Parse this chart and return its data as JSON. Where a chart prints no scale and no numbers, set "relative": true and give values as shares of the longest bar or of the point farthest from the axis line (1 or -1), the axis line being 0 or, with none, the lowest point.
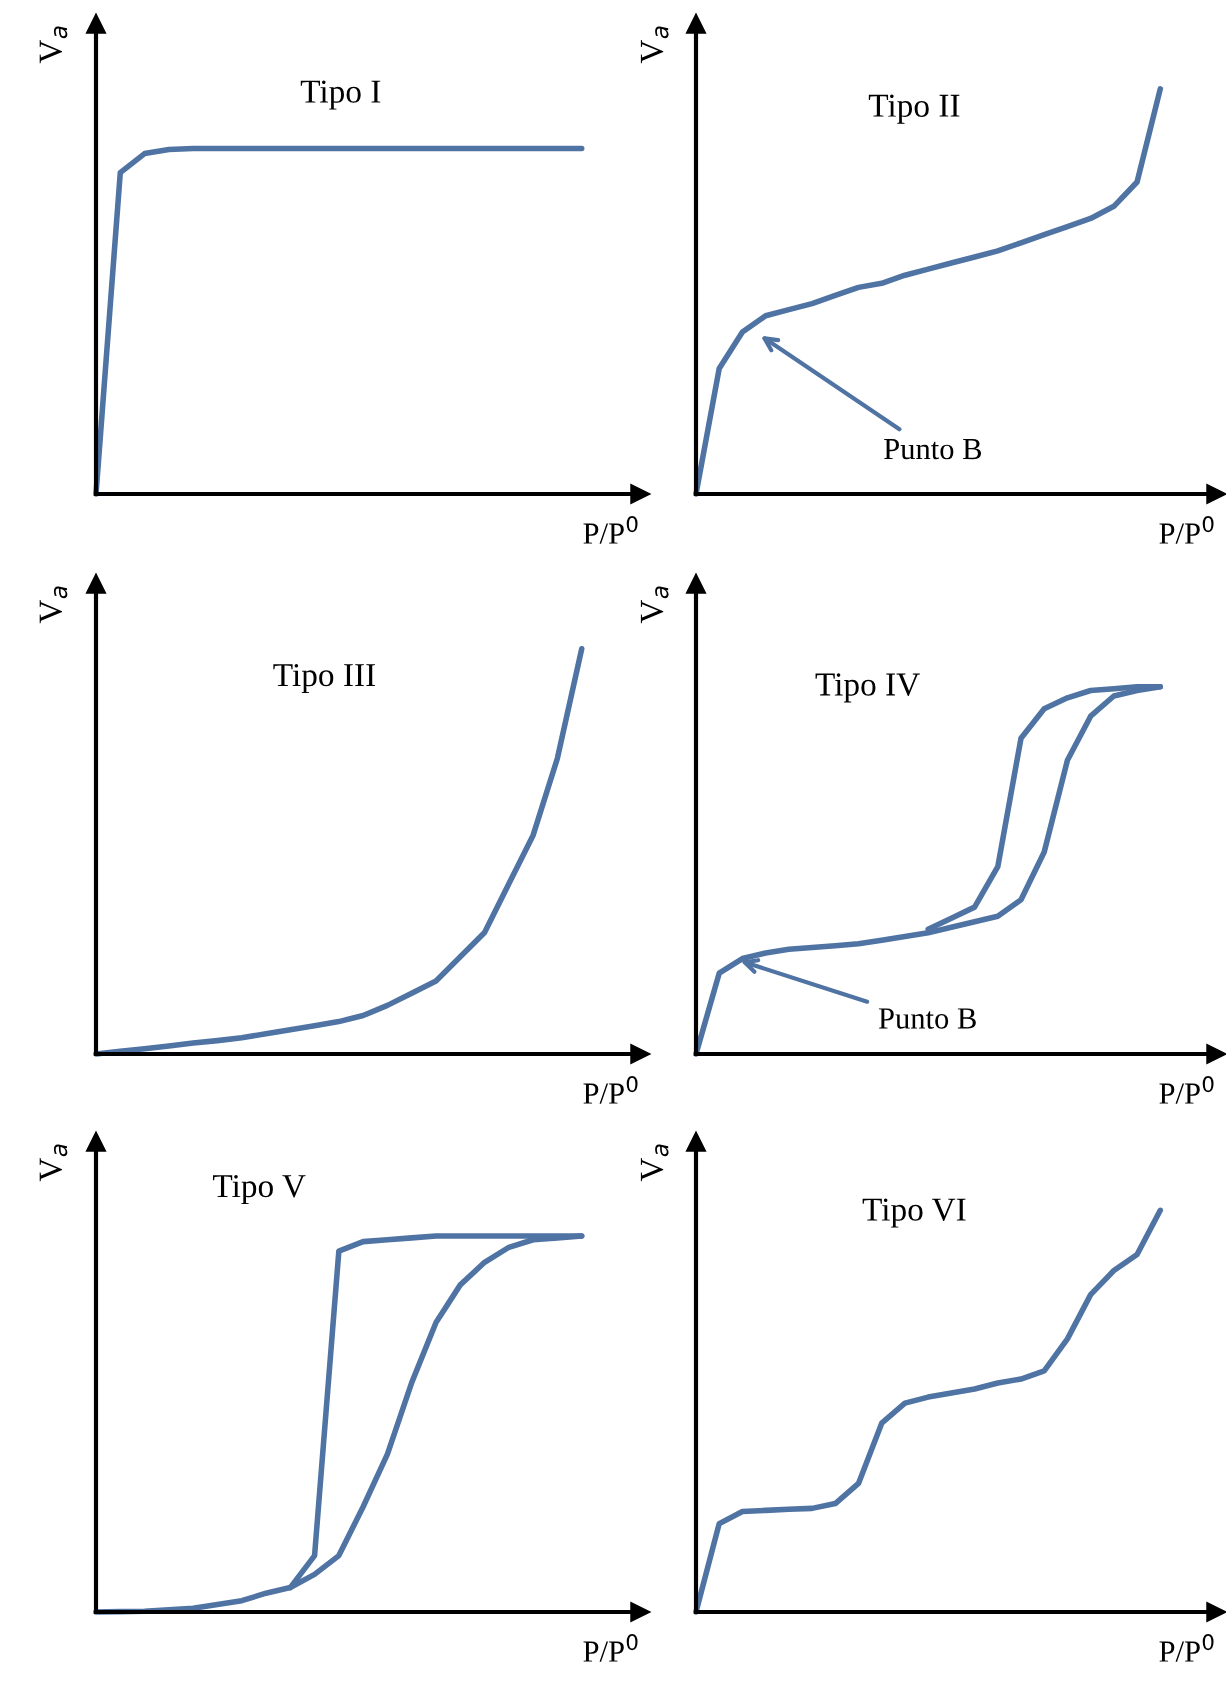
{
  "chart_data": [
    {
      "type": "line",
      "title": "Tipo I",
      "xlabel": "P/P$^{0}$",
      "ylabel": "V$_{a}$",
      "relative": true,
      "tick_labels": false,
      "categories": [
        null,
        null,
        null,
        null,
        null,
        null,
        null,
        null,
        null,
        null,
        null,
        null,
        null,
        null,
        null,
        null,
        null,
        null,
        null,
        null,
        null
      ],
      "series": [
        {
          "color": "#4f73a3",
          "values": [
            0,
            0.93,
            0.985,
            0.997,
            1,
            1,
            1,
            1,
            1,
            1,
            1,
            1,
            1,
            1,
            1,
            1,
            1,
            1,
            1,
            1,
            1
          ]
        }
      ]
    },
    {
      "type": "line",
      "title": "Tipo II",
      "xlabel": "P/P$^{0}$",
      "ylabel": "V$_{a}$",
      "relative": true,
      "tick_labels": false,
      "annotations": [
        "Punto B"
      ],
      "categories": [
        null,
        null,
        null,
        null,
        null,
        null,
        null,
        null,
        null,
        null,
        null,
        null,
        null,
        null,
        null,
        null,
        null,
        null,
        null,
        null,
        null
      ],
      "series": [
        {
          "color": "#4f73a3",
          "values": [
            0,
            0.31,
            0.4,
            0.44,
            0.455,
            0.47,
            0.49,
            0.51,
            0.52,
            0.54,
            0.555,
            0.57,
            0.585,
            0.6,
            0.62,
            0.64,
            0.66,
            0.68,
            0.71,
            0.77,
            1
          ]
        }
      ]
    },
    {
      "type": "line",
      "title": "Tipo III",
      "xlabel": "P/P$^{0}$",
      "ylabel": "V$_{a}$",
      "relative": true,
      "tick_labels": false,
      "categories": [
        null,
        null,
        null,
        null,
        null,
        null,
        null,
        null,
        null,
        null,
        null,
        null,
        null,
        null,
        null,
        null,
        null,
        null,
        null,
        null,
        null
      ],
      "series": [
        {
          "color": "#4f73a3",
          "values": [
            0,
            0.007,
            0.013,
            0.02,
            0.027,
            0.033,
            0.04,
            0.05,
            0.06,
            0.07,
            0.08,
            0.095,
            0.12,
            0.15,
            0.18,
            0.24,
            0.3,
            0.42,
            0.54,
            0.73,
            1
          ]
        }
      ]
    },
    {
      "type": "line",
      "title": "Tipo IV",
      "xlabel": "P/P$^{0}$",
      "ylabel": "V$_{a}$",
      "relative": true,
      "tick_labels": false,
      "annotations": [
        "Punto B"
      ],
      "categories": [
        null,
        null,
        null,
        null,
        null,
        null,
        null,
        null,
        null,
        null,
        null,
        null,
        null,
        null,
        null,
        null,
        null,
        null,
        null,
        null,
        null
      ],
      "series": [
        {
          "color": "#4f73a3",
          "values": [
            0,
            0.22,
            0.26,
            0.275,
            0.285,
            0.29,
            0.295,
            0.3,
            0.31,
            0.32,
            0.33,
            0.345,
            0.36,
            0.375,
            0.42,
            0.55,
            0.8,
            0.92,
            0.975,
            0.99,
            1
          ]
        },
        {
          "color": "#4f73a3",
          "values": [
            null,
            null,
            null,
            null,
            null,
            null,
            null,
            null,
            null,
            null,
            0.34,
            0.37,
            0.4,
            0.51,
            0.86,
            0.94,
            0.97,
            0.99,
            0.995,
            1,
            1
          ]
        }
      ]
    },
    {
      "type": "line",
      "title": "Tipo V",
      "xlabel": "P/P$^{0}$",
      "ylabel": "V$_{a}$",
      "relative": true,
      "tick_labels": false,
      "categories": [
        null,
        null,
        null,
        null,
        null,
        null,
        null,
        null,
        null,
        null,
        null,
        null,
        null,
        null,
        null,
        null,
        null,
        null,
        null,
        null,
        null
      ],
      "series": [
        {
          "color": "#4f73a3",
          "values": [
            0,
            0.001,
            0.002,
            0.006,
            0.01,
            0.02,
            0.03,
            0.05,
            0.065,
            0.1,
            0.15,
            0.28,
            0.42,
            0.61,
            0.77,
            0.87,
            0.93,
            0.97,
            0.99,
            0.995,
            1
          ]
        },
        {
          "color": "#4f73a3",
          "values": [
            null,
            null,
            null,
            null,
            null,
            null,
            null,
            null,
            0.065,
            0.15,
            0.96,
            0.985,
            0.99,
            0.995,
            1,
            1,
            1,
            1,
            1,
            1,
            1
          ]
        }
      ]
    },
    {
      "type": "line",
      "title": "Tipo VI",
      "xlabel": "P/P$^{0}$",
      "ylabel": "V$_{a}$",
      "relative": true,
      "tick_labels": false,
      "categories": [
        null,
        null,
        null,
        null,
        null,
        null,
        null,
        null,
        null,
        null,
        null,
        null,
        null,
        null,
        null,
        null,
        null,
        null,
        null,
        null,
        null
      ],
      "series": [
        {
          "color": "#4f73a3",
          "values": [
            0,
            0.22,
            0.25,
            0.253,
            0.256,
            0.258,
            0.27,
            0.32,
            0.47,
            0.52,
            0.535,
            0.545,
            0.555,
            0.57,
            0.58,
            0.6,
            0.68,
            0.79,
            0.85,
            0.89,
            1
          ]
        }
      ]
    }
  ]
}
